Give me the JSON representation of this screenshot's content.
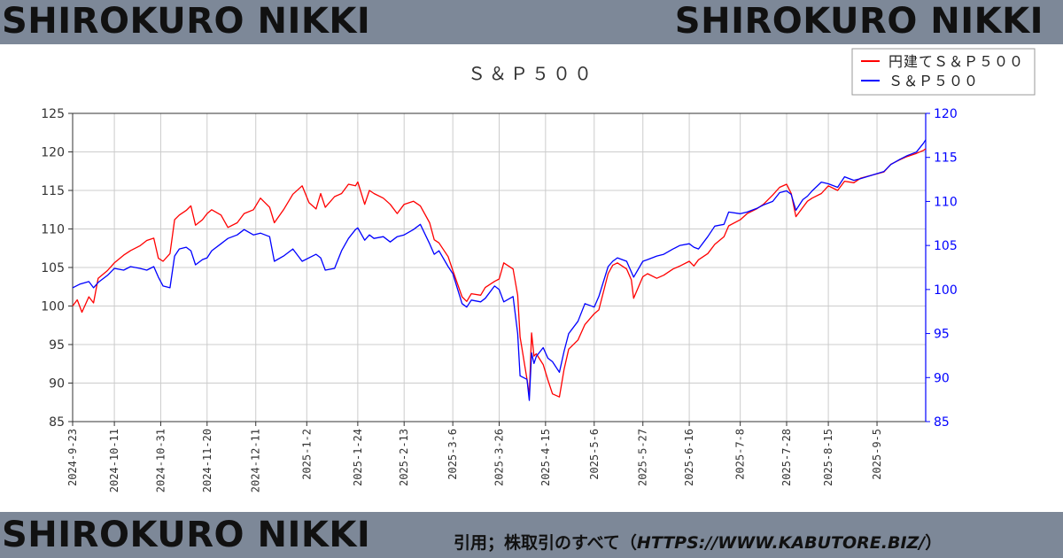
{
  "banner": {
    "brand_top_left": "SHIROKURO NIKKI",
    "brand_top_right": "SHIROKURO NIKKI",
    "brand_bottom_left": "SHIROKURO NIKKI",
    "credit_prefix": "引用；株取引のすべて（",
    "credit_url": "HTTPS://WWW.KABUTORE.BIZ/",
    "credit_suffix": "）"
  },
  "colors": {
    "banner": "#7d8898",
    "series_yen": "#ff0000",
    "series_usd": "#0000ff",
    "right_axis": "#0000ff"
  },
  "chart_data": {
    "type": "line",
    "title": "Ｓ＆Ｐ５００",
    "xlabel": "",
    "ylabel": "",
    "legend_placement": "top-right",
    "grid": true,
    "x_ticks": [
      "2024-9-23",
      "2024-10-11",
      "2024-10-31",
      "2024-11-20",
      "2024-12-11",
      "2025-1-2",
      "2025-1-24",
      "2025-2-13",
      "2025-3-6",
      "2025-3-26",
      "2025-4-15",
      "2025-5-6",
      "2025-5-27",
      "2025-6-16",
      "2025-7-8",
      "2025-7-28",
      "2025-8-15",
      "2025-9-5"
    ],
    "x_range": [
      "2024-09-23",
      "2025-09-26"
    ],
    "y_left": {
      "range": [
        85,
        125
      ],
      "ticks": [
        85,
        90,
        95,
        100,
        105,
        110,
        115,
        120,
        125
      ]
    },
    "y_right": {
      "range": [
        85,
        120
      ],
      "ticks": [
        85,
        90,
        95,
        100,
        105,
        110,
        115,
        120
      ]
    },
    "series": [
      {
        "name": "円建てＳ＆Ｐ５００",
        "axis": "left",
        "points": [
          [
            "2024-09-23",
            100.0
          ],
          [
            "2024-09-25",
            100.8
          ],
          [
            "2024-09-27",
            99.2
          ],
          [
            "2024-09-30",
            101.2
          ],
          [
            "2024-10-02",
            100.4
          ],
          [
            "2024-10-04",
            103.6
          ],
          [
            "2024-10-08",
            104.6
          ],
          [
            "2024-10-11",
            105.6
          ],
          [
            "2024-10-15",
            106.6
          ],
          [
            "2024-10-18",
            107.2
          ],
          [
            "2024-10-22",
            107.8
          ],
          [
            "2024-10-25",
            108.5
          ],
          [
            "2024-10-28",
            108.8
          ],
          [
            "2024-10-30",
            106.2
          ],
          [
            "2024-11-01",
            105.8
          ],
          [
            "2024-11-04",
            106.8
          ],
          [
            "2024-11-06",
            111.2
          ],
          [
            "2024-11-08",
            111.8
          ],
          [
            "2024-11-11",
            112.4
          ],
          [
            "2024-11-13",
            113.0
          ],
          [
            "2024-11-15",
            110.5
          ],
          [
            "2024-11-18",
            111.2
          ],
          [
            "2024-11-20",
            112.0
          ],
          [
            "2024-11-22",
            112.5
          ],
          [
            "2024-11-26",
            111.8
          ],
          [
            "2024-11-29",
            110.2
          ],
          [
            "2024-12-03",
            110.8
          ],
          [
            "2024-12-06",
            112.0
          ],
          [
            "2024-12-10",
            112.5
          ],
          [
            "2024-12-13",
            114.0
          ],
          [
            "2024-12-17",
            112.8
          ],
          [
            "2024-12-19",
            110.8
          ],
          [
            "2024-12-23",
            112.5
          ],
          [
            "2024-12-27",
            114.5
          ],
          [
            "2024-12-31",
            115.6
          ],
          [
            "2025-01-03",
            113.4
          ],
          [
            "2025-01-06",
            112.6
          ],
          [
            "2025-01-08",
            114.6
          ],
          [
            "2025-01-10",
            112.8
          ],
          [
            "2025-01-14",
            114.2
          ],
          [
            "2025-01-17",
            114.6
          ],
          [
            "2025-01-20",
            115.8
          ],
          [
            "2025-01-23",
            115.6
          ],
          [
            "2025-01-24",
            116.1
          ],
          [
            "2025-01-27",
            113.2
          ],
          [
            "2025-01-29",
            115.0
          ],
          [
            "2025-01-31",
            114.6
          ],
          [
            "2025-02-04",
            114.0
          ],
          [
            "2025-02-07",
            113.2
          ],
          [
            "2025-02-10",
            112.0
          ],
          [
            "2025-02-13",
            113.2
          ],
          [
            "2025-02-17",
            113.6
          ],
          [
            "2025-02-20",
            113.0
          ],
          [
            "2025-02-24",
            110.8
          ],
          [
            "2025-02-26",
            108.6
          ],
          [
            "2025-02-28",
            108.2
          ],
          [
            "2025-03-04",
            106.4
          ],
          [
            "2025-03-06",
            104.6
          ],
          [
            "2025-03-10",
            101.2
          ],
          [
            "2025-03-12",
            100.6
          ],
          [
            "2025-03-14",
            101.6
          ],
          [
            "2025-03-18",
            101.4
          ],
          [
            "2025-03-20",
            102.4
          ],
          [
            "2025-03-24",
            103.2
          ],
          [
            "2025-03-26",
            103.5
          ],
          [
            "2025-03-28",
            105.6
          ],
          [
            "2025-04-01",
            104.8
          ],
          [
            "2025-04-03",
            101.4
          ],
          [
            "2025-04-04",
            96.0
          ],
          [
            "2025-04-07",
            90.5
          ],
          [
            "2025-04-08",
            88.4
          ],
          [
            "2025-04-09",
            96.5
          ],
          [
            "2025-04-10",
            93.5
          ],
          [
            "2025-04-11",
            93.8
          ],
          [
            "2025-04-14",
            92.4
          ],
          [
            "2025-04-16",
            90.4
          ],
          [
            "2025-04-18",
            88.6
          ],
          [
            "2025-04-21",
            88.2
          ],
          [
            "2025-04-23",
            91.8
          ],
          [
            "2025-04-25",
            94.4
          ],
          [
            "2025-04-29",
            95.6
          ],
          [
            "2025-05-02",
            97.6
          ],
          [
            "2025-05-06",
            99.0
          ],
          [
            "2025-05-08",
            99.5
          ],
          [
            "2025-05-12",
            104.2
          ],
          [
            "2025-05-14",
            105.3
          ],
          [
            "2025-05-16",
            105.6
          ],
          [
            "2025-05-20",
            104.8
          ],
          [
            "2025-05-22",
            103.4
          ],
          [
            "2025-05-23",
            101.0
          ],
          [
            "2025-05-27",
            103.8
          ],
          [
            "2025-05-29",
            104.2
          ],
          [
            "2025-06-02",
            103.6
          ],
          [
            "2025-06-05",
            104.0
          ],
          [
            "2025-06-09",
            104.8
          ],
          [
            "2025-06-12",
            105.2
          ],
          [
            "2025-06-16",
            105.8
          ],
          [
            "2025-06-18",
            105.2
          ],
          [
            "2025-06-20",
            106.0
          ],
          [
            "2025-06-24",
            106.8
          ],
          [
            "2025-06-27",
            108.0
          ],
          [
            "2025-07-01",
            109.0
          ],
          [
            "2025-07-03",
            110.4
          ],
          [
            "2025-07-08",
            111.2
          ],
          [
            "2025-07-11",
            112.0
          ],
          [
            "2025-07-15",
            112.6
          ],
          [
            "2025-07-18",
            113.2
          ],
          [
            "2025-07-22",
            114.4
          ],
          [
            "2025-07-25",
            115.4
          ],
          [
            "2025-07-28",
            115.8
          ],
          [
            "2025-07-30",
            114.6
          ],
          [
            "2025-08-01",
            111.6
          ],
          [
            "2025-08-04",
            112.8
          ],
          [
            "2025-08-06",
            113.6
          ],
          [
            "2025-08-08",
            114.0
          ],
          [
            "2025-08-12",
            114.6
          ],
          [
            "2025-08-15",
            115.6
          ],
          [
            "2025-08-19",
            115.0
          ],
          [
            "2025-08-22",
            116.2
          ],
          [
            "2025-08-26",
            116.0
          ],
          [
            "2025-08-29",
            116.6
          ],
          [
            "2025-09-03",
            117.0
          ],
          [
            "2025-09-08",
            117.4
          ],
          [
            "2025-09-11",
            118.4
          ],
          [
            "2025-09-15",
            119.0
          ],
          [
            "2025-09-18",
            119.4
          ],
          [
            "2025-09-22",
            119.8
          ],
          [
            "2025-09-25",
            120.2
          ],
          [
            "2025-09-26",
            120.4
          ]
        ]
      },
      {
        "name": "Ｓ＆Ｐ５００",
        "axis": "right",
        "points": [
          [
            "2024-09-23",
            100.2
          ],
          [
            "2024-09-26",
            100.6
          ],
          [
            "2024-09-30",
            100.9
          ],
          [
            "2024-10-02",
            100.2
          ],
          [
            "2024-10-04",
            100.8
          ],
          [
            "2024-10-08",
            101.6
          ],
          [
            "2024-10-11",
            102.4
          ],
          [
            "2024-10-15",
            102.2
          ],
          [
            "2024-10-18",
            102.6
          ],
          [
            "2024-10-22",
            102.4
          ],
          [
            "2024-10-25",
            102.2
          ],
          [
            "2024-10-28",
            102.6
          ],
          [
            "2024-10-30",
            101.4
          ],
          [
            "2024-11-01",
            100.4
          ],
          [
            "2024-11-04",
            100.2
          ],
          [
            "2024-11-06",
            103.8
          ],
          [
            "2024-11-08",
            104.6
          ],
          [
            "2024-11-11",
            104.8
          ],
          [
            "2024-11-13",
            104.4
          ],
          [
            "2024-11-15",
            102.8
          ],
          [
            "2024-11-18",
            103.4
          ],
          [
            "2024-11-20",
            103.6
          ],
          [
            "2024-11-22",
            104.4
          ],
          [
            "2024-11-26",
            105.2
          ],
          [
            "2024-11-29",
            105.8
          ],
          [
            "2024-12-03",
            106.2
          ],
          [
            "2024-12-06",
            106.8
          ],
          [
            "2024-12-10",
            106.2
          ],
          [
            "2024-12-13",
            106.4
          ],
          [
            "2024-12-17",
            106.0
          ],
          [
            "2024-12-19",
            103.2
          ],
          [
            "2024-12-23",
            103.8
          ],
          [
            "2024-12-27",
            104.6
          ],
          [
            "2024-12-31",
            103.2
          ],
          [
            "2025-01-03",
            103.6
          ],
          [
            "2025-01-06",
            104.0
          ],
          [
            "2025-01-08",
            103.6
          ],
          [
            "2025-01-10",
            102.2
          ],
          [
            "2025-01-14",
            102.4
          ],
          [
            "2025-01-17",
            104.4
          ],
          [
            "2025-01-20",
            105.8
          ],
          [
            "2025-01-23",
            106.8
          ],
          [
            "2025-01-24",
            107.0
          ],
          [
            "2025-01-27",
            105.6
          ],
          [
            "2025-01-29",
            106.2
          ],
          [
            "2025-01-31",
            105.8
          ],
          [
            "2025-02-04",
            106.0
          ],
          [
            "2025-02-07",
            105.4
          ],
          [
            "2025-02-10",
            106.0
          ],
          [
            "2025-02-13",
            106.2
          ],
          [
            "2025-02-17",
            106.8
          ],
          [
            "2025-02-20",
            107.4
          ],
          [
            "2025-02-24",
            105.2
          ],
          [
            "2025-02-26",
            104.0
          ],
          [
            "2025-02-28",
            104.4
          ],
          [
            "2025-03-04",
            102.6
          ],
          [
            "2025-03-06",
            101.8
          ],
          [
            "2025-03-10",
            98.4
          ],
          [
            "2025-03-12",
            98.0
          ],
          [
            "2025-03-14",
            98.8
          ],
          [
            "2025-03-18",
            98.6
          ],
          [
            "2025-03-20",
            99.0
          ],
          [
            "2025-03-24",
            100.4
          ],
          [
            "2025-03-26",
            100.0
          ],
          [
            "2025-03-28",
            98.6
          ],
          [
            "2025-04-01",
            99.2
          ],
          [
            "2025-04-03",
            95.0
          ],
          [
            "2025-04-04",
            90.2
          ],
          [
            "2025-04-07",
            89.8
          ],
          [
            "2025-04-08",
            87.4
          ],
          [
            "2025-04-09",
            92.8
          ],
          [
            "2025-04-10",
            91.6
          ],
          [
            "2025-04-11",
            92.4
          ],
          [
            "2025-04-14",
            93.4
          ],
          [
            "2025-04-16",
            92.2
          ],
          [
            "2025-04-18",
            91.8
          ],
          [
            "2025-04-21",
            90.6
          ],
          [
            "2025-04-23",
            93.0
          ],
          [
            "2025-04-25",
            95.0
          ],
          [
            "2025-04-29",
            96.4
          ],
          [
            "2025-05-02",
            98.4
          ],
          [
            "2025-05-06",
            98.0
          ],
          [
            "2025-05-08",
            99.2
          ],
          [
            "2025-05-12",
            102.6
          ],
          [
            "2025-05-14",
            103.2
          ],
          [
            "2025-05-16",
            103.6
          ],
          [
            "2025-05-20",
            103.2
          ],
          [
            "2025-05-22",
            102.0
          ],
          [
            "2025-05-23",
            101.4
          ],
          [
            "2025-05-27",
            103.2
          ],
          [
            "2025-05-29",
            103.4
          ],
          [
            "2025-06-02",
            103.8
          ],
          [
            "2025-06-05",
            104.0
          ],
          [
            "2025-06-09",
            104.6
          ],
          [
            "2025-06-12",
            105.0
          ],
          [
            "2025-06-16",
            105.2
          ],
          [
            "2025-06-18",
            104.8
          ],
          [
            "2025-06-20",
            104.6
          ],
          [
            "2025-06-24",
            106.0
          ],
          [
            "2025-06-27",
            107.2
          ],
          [
            "2025-07-01",
            107.4
          ],
          [
            "2025-07-03",
            108.8
          ],
          [
            "2025-07-08",
            108.6
          ],
          [
            "2025-07-11",
            108.8
          ],
          [
            "2025-07-15",
            109.2
          ],
          [
            "2025-07-18",
            109.6
          ],
          [
            "2025-07-22",
            110.0
          ],
          [
            "2025-07-25",
            111.0
          ],
          [
            "2025-07-28",
            111.2
          ],
          [
            "2025-07-30",
            110.8
          ],
          [
            "2025-08-01",
            109.0
          ],
          [
            "2025-08-04",
            110.2
          ],
          [
            "2025-08-06",
            110.6
          ],
          [
            "2025-08-08",
            111.2
          ],
          [
            "2025-08-12",
            112.2
          ],
          [
            "2025-08-15",
            112.0
          ],
          [
            "2025-08-19",
            111.6
          ],
          [
            "2025-08-22",
            112.8
          ],
          [
            "2025-08-26",
            112.4
          ],
          [
            "2025-08-29",
            112.6
          ],
          [
            "2025-09-03",
            113.0
          ],
          [
            "2025-09-08",
            113.4
          ],
          [
            "2025-09-11",
            114.2
          ],
          [
            "2025-09-15",
            114.8
          ],
          [
            "2025-09-18",
            115.2
          ],
          [
            "2025-09-22",
            115.6
          ],
          [
            "2025-09-25",
            116.6
          ],
          [
            "2025-09-26",
            117.0
          ]
        ]
      }
    ]
  }
}
